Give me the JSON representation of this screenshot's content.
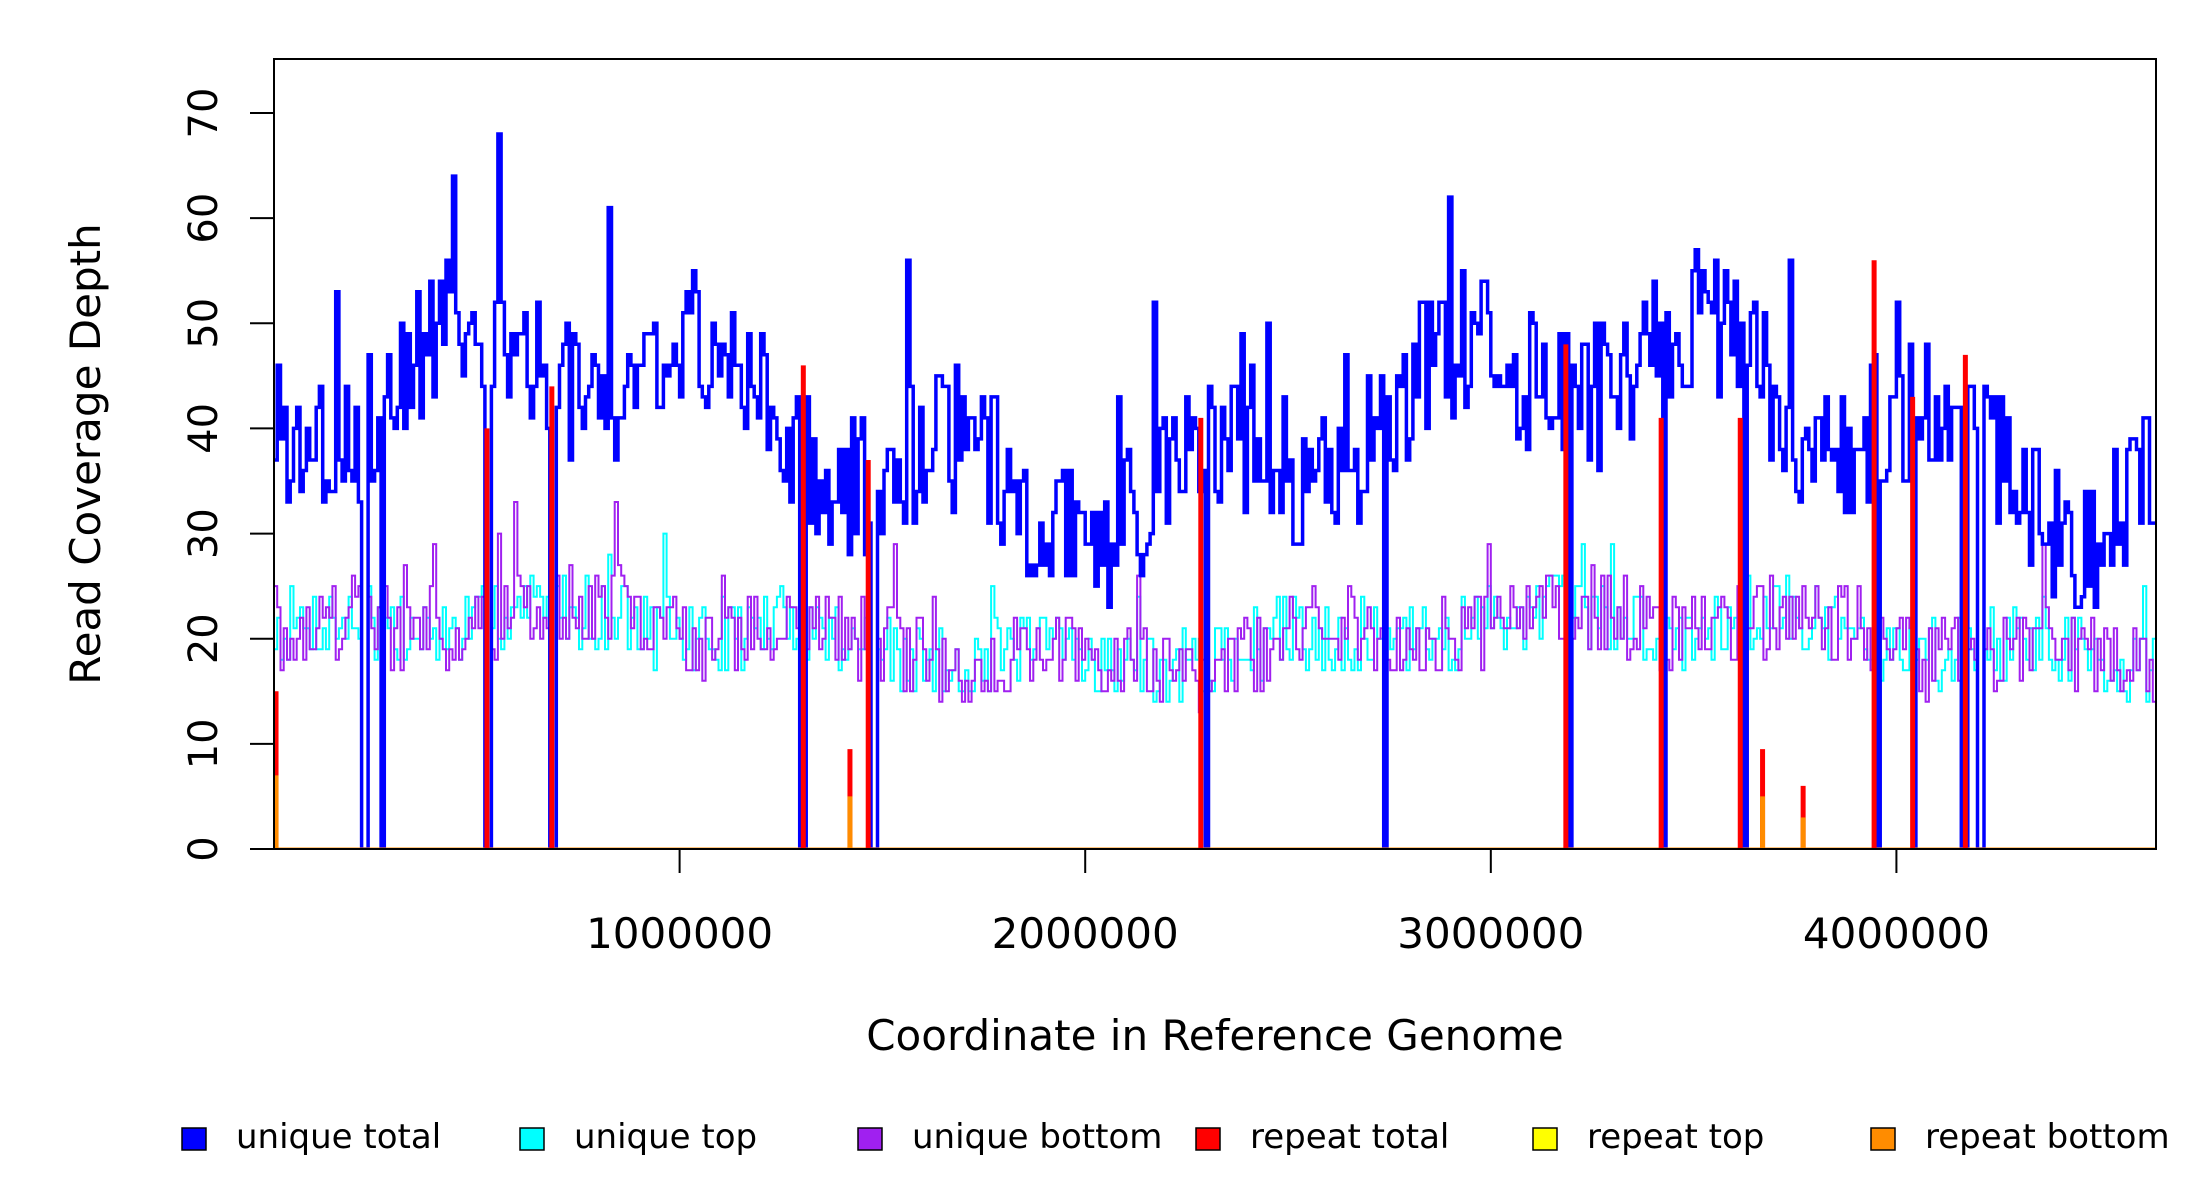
{
  "chart_data": {
    "type": "line",
    "title": "",
    "xlabel": "Coordinate in Reference Genome",
    "ylabel": "Read Coverage Depth",
    "xlim": [
      0,
      4640000
    ],
    "ylim": [
      0,
      75
    ],
    "x_ticks": [
      1000000,
      2000000,
      3000000,
      4000000
    ],
    "x_tick_labels": [
      "1000000",
      "2000000",
      "3000000",
      "4000000"
    ],
    "y_ticks": [
      0,
      10,
      20,
      30,
      40,
      50,
      60,
      70
    ],
    "y_tick_labels": [
      "0",
      "10",
      "20",
      "30",
      "40",
      "50",
      "60",
      "70"
    ],
    "grid": false,
    "legend_position": "bottom",
    "bin_size": 8000,
    "series": [
      {
        "name": "unique total",
        "color": "#0000ff",
        "baseline": 40,
        "amplitude": 7,
        "noise": 14,
        "peak": 70
      },
      {
        "name": "unique top",
        "color": "#00ffff",
        "baseline": 20,
        "amplitude": 2,
        "noise": 7,
        "peak": 36
      },
      {
        "name": "unique bottom",
        "color": "#a020f0",
        "baseline": 20,
        "amplitude": 2,
        "noise": 8,
        "peak": 33
      },
      {
        "name": "repeat total",
        "color": "#ff0000",
        "baseline": 0
      },
      {
        "name": "repeat top",
        "color": "#ffff00",
        "baseline": 0
      },
      {
        "name": "repeat bottom",
        "color": "#ff8c00",
        "baseline": 0
      }
    ],
    "dropout_positions": [
      220000,
      265000,
      525000,
      685000,
      1300000,
      1475000,
      2295000,
      2735000,
      3190000,
      3425000,
      3625000,
      3950000,
      4040000,
      4165000,
      4205000
    ],
    "repeat_spikes": [
      {
        "x": 5000,
        "total": 15,
        "bottom": 7
      },
      {
        "x": 525000,
        "total": 40,
        "bottom": 0
      },
      {
        "x": 685000,
        "total": 44,
        "bottom": 0
      },
      {
        "x": 1305000,
        "total": 46,
        "bottom": 0
      },
      {
        "x": 1420000,
        "total": 9.5,
        "bottom": 5
      },
      {
        "x": 1465000,
        "total": 37,
        "bottom": 0
      },
      {
        "x": 2285000,
        "total": 41,
        "bottom": 0
      },
      {
        "x": 3185000,
        "total": 48,
        "bottom": 0
      },
      {
        "x": 3420000,
        "total": 41,
        "bottom": 0
      },
      {
        "x": 3615000,
        "total": 41,
        "bottom": 0
      },
      {
        "x": 3670000,
        "total": 9.5,
        "bottom": 5
      },
      {
        "x": 3770000,
        "total": 6,
        "bottom": 3
      },
      {
        "x": 3945000,
        "total": 56,
        "bottom": 0
      },
      {
        "x": 4040000,
        "total": 43,
        "bottom": 0
      },
      {
        "x": 4170000,
        "total": 47,
        "bottom": 0
      }
    ]
  }
}
